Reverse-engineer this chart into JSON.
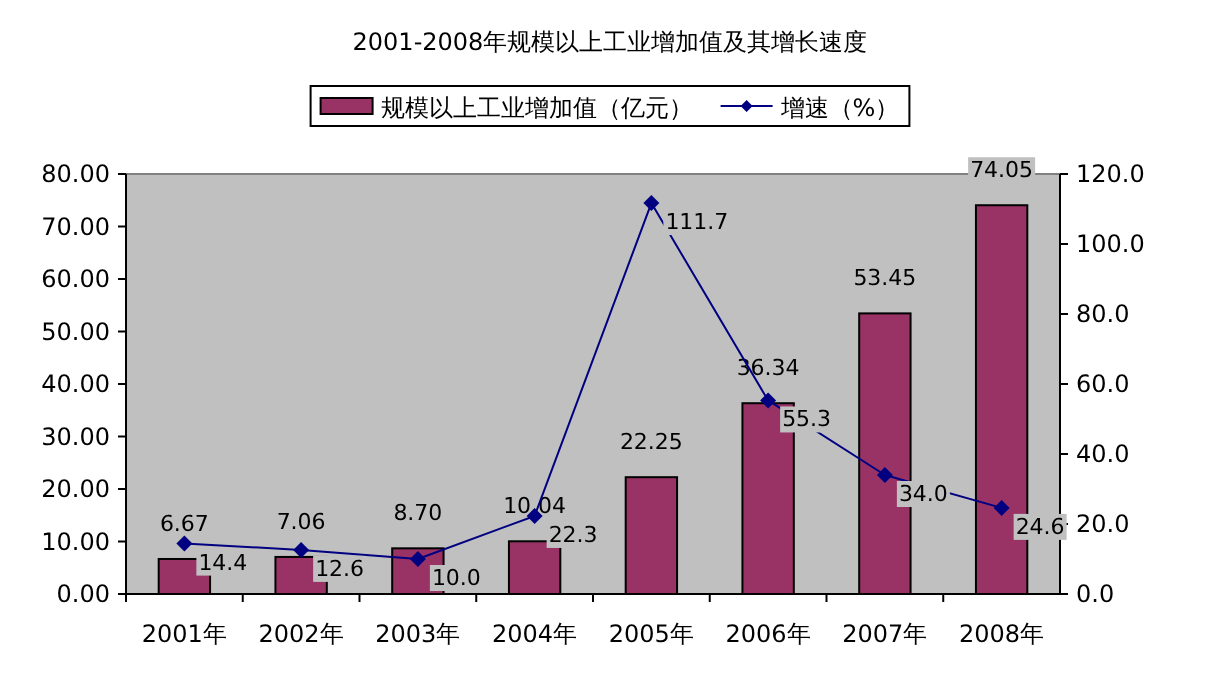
{
  "chart_data": {
    "type": "bar",
    "title": "2001-2008年规模以上工业增加值及其增长速度",
    "categories": [
      "2001年",
      "2002年",
      "2003年",
      "2004年",
      "2005年",
      "2006年",
      "2007年",
      "2008年"
    ],
    "series": [
      {
        "name": "规模以上工业增加值（亿元）",
        "color": "#993366",
        "values": [
          6.67,
          7.06,
          8.7,
          10.04,
          22.25,
          36.34,
          53.45,
          74.05
        ],
        "value_labels": [
          "6.67",
          "7.06",
          "8.70",
          "10.04",
          "22.25",
          "36.34",
          "53.45",
          "74.05"
        ]
      },
      {
        "name": "增速（%）",
        "type": "line",
        "axis": "y2",
        "color": "#000080",
        "marker": "diamond",
        "values": [
          14.4,
          12.6,
          10.0,
          22.3,
          111.7,
          55.3,
          34.0,
          24.6
        ],
        "value_labels": [
          "14.4",
          "12.6",
          "10.0",
          "22.3",
          "111.7",
          "55.3",
          "34.0",
          "24.6"
        ]
      }
    ],
    "ylim": [
      0,
      80
    ],
    "yticks": [
      {
        "value": 0,
        "label": "0.00"
      },
      {
        "value": 10,
        "label": "10.00"
      },
      {
        "value": 20,
        "label": "20.00"
      },
      {
        "value": 30,
        "label": "30.00"
      },
      {
        "value": 40,
        "label": "40.00"
      },
      {
        "value": 50,
        "label": "50.00"
      },
      {
        "value": 60,
        "label": "60.00"
      },
      {
        "value": 70,
        "label": "70.00"
      },
      {
        "value": 80,
        "label": "80.00"
      }
    ],
    "y2lim": [
      0,
      120
    ],
    "y2ticks": [
      {
        "value": 0,
        "label": "0.0"
      },
      {
        "value": 20,
        "label": "20.0"
      },
      {
        "value": 40,
        "label": "40.0"
      },
      {
        "value": 60,
        "label": "60.0"
      },
      {
        "value": 80,
        "label": "80.0"
      },
      {
        "value": 100,
        "label": "100.0"
      },
      {
        "value": 120,
        "label": "120.0"
      }
    ],
    "legend": "top",
    "grid": false
  }
}
